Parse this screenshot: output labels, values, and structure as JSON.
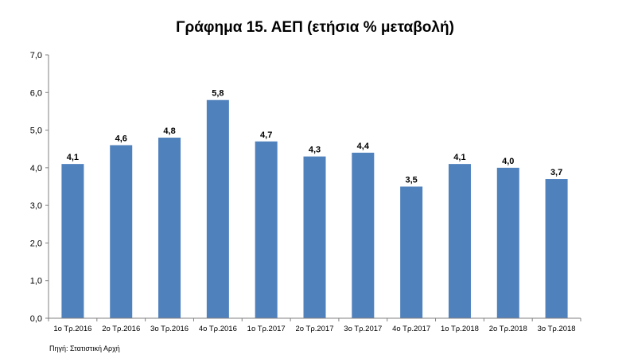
{
  "chart_data": {
    "type": "bar",
    "title": "Γράφημα 15. ΑΕΠ (ετήσια % μεταβολή)",
    "categories": [
      "1ο Τρ.2016",
      "2ο Τρ.2016",
      "3ο Τρ.2016",
      "4ο Τρ.2016",
      "1ο Τρ.2017",
      "2ο Τρ.2017",
      "3ο Τρ.2017",
      "4ο Τρ.2017",
      "1ο Τρ.2018",
      "2ο Τρ.2018",
      "3ο Τρ.2018"
    ],
    "values": [
      4.1,
      4.6,
      4.8,
      5.8,
      4.7,
      4.3,
      4.4,
      3.5,
      4.1,
      4.0,
      3.7
    ],
    "value_labels": [
      "4,1",
      "4,6",
      "4,8",
      "5,8",
      "4,7",
      "4,3",
      "4,4",
      "3,5",
      "4,1",
      "4,0",
      "3,7"
    ],
    "ylim": [
      0,
      7
    ],
    "y_ticks": [
      0,
      1,
      2,
      3,
      4,
      5,
      6,
      7
    ],
    "y_tick_labels": [
      "0,0",
      "1,0",
      "2,0",
      "3,0",
      "4,0",
      "5,0",
      "6,0",
      "7,0"
    ],
    "xlabel": "",
    "ylabel": "",
    "grid": false,
    "bar_color": "#4f81bd",
    "source": "Πηγή: Στατιστική Αρχή"
  }
}
